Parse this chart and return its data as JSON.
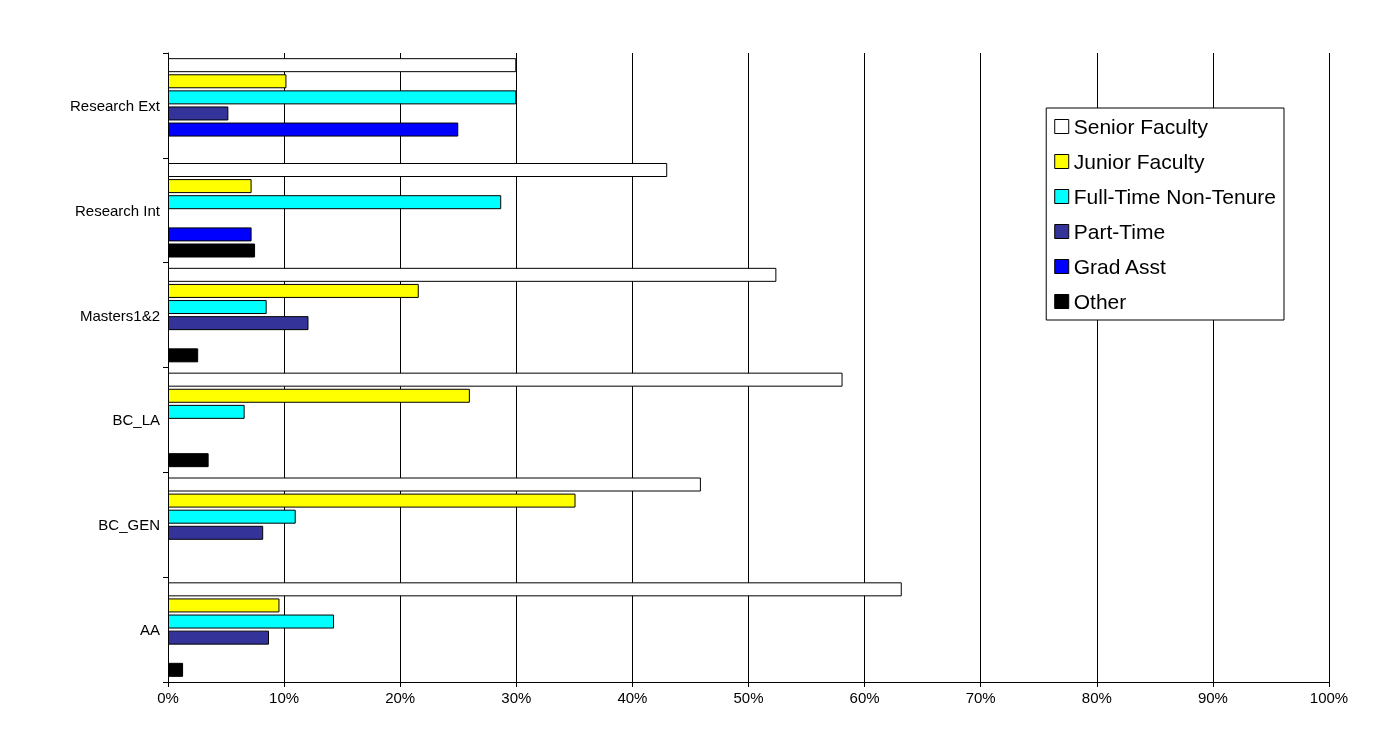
{
  "chart_data": {
    "type": "bar",
    "orientation": "horizontal",
    "categories": [
      "Research Ext",
      "Research Int",
      "Masters1&2",
      "BC_LA",
      "BC_GEN",
      "AA"
    ],
    "series": [
      {
        "name": "Senior Faculty",
        "color": "#ffffff",
        "values": [
          30,
          43,
          52.4,
          58.1,
          45.9,
          63.2
        ]
      },
      {
        "name": "Junior Faculty",
        "color": "#ffff00",
        "values": [
          10.2,
          7.2,
          21.6,
          26,
          35.1,
          9.6
        ]
      },
      {
        "name": "Full-Time Non-Tenure",
        "color": "#00ffff",
        "values": [
          30,
          28.7,
          8.5,
          6.6,
          11,
          14.3
        ]
      },
      {
        "name": "Part-Time",
        "color": "#333399",
        "values": [
          5.2,
          null,
          12.1,
          null,
          8.2,
          8.7
        ]
      },
      {
        "name": "Grad Asst",
        "color": "#0000ff",
        "values": [
          25,
          7.2,
          null,
          null,
          null,
          null
        ]
      },
      {
        "name": "Other",
        "color": "#000000",
        "values": [
          null,
          7.5,
          2.6,
          3.5,
          null,
          1.3
        ]
      }
    ],
    "xlim": [
      0,
      100
    ],
    "xticks": [
      {
        "value": 0,
        "label": "0%"
      },
      {
        "value": 10,
        "label": "10%"
      },
      {
        "value": 20,
        "label": "20%"
      },
      {
        "value": 30,
        "label": "30%"
      },
      {
        "value": 40,
        "label": "40%"
      },
      {
        "value": 50,
        "label": "50%"
      },
      {
        "value": 60,
        "label": "60%"
      },
      {
        "value": 70,
        "label": "70%"
      },
      {
        "value": 80,
        "label": "80%"
      },
      {
        "value": 90,
        "label": "90%"
      },
      {
        "value": 100,
        "label": "100%"
      }
    ],
    "grid": "x",
    "legend": "right"
  }
}
